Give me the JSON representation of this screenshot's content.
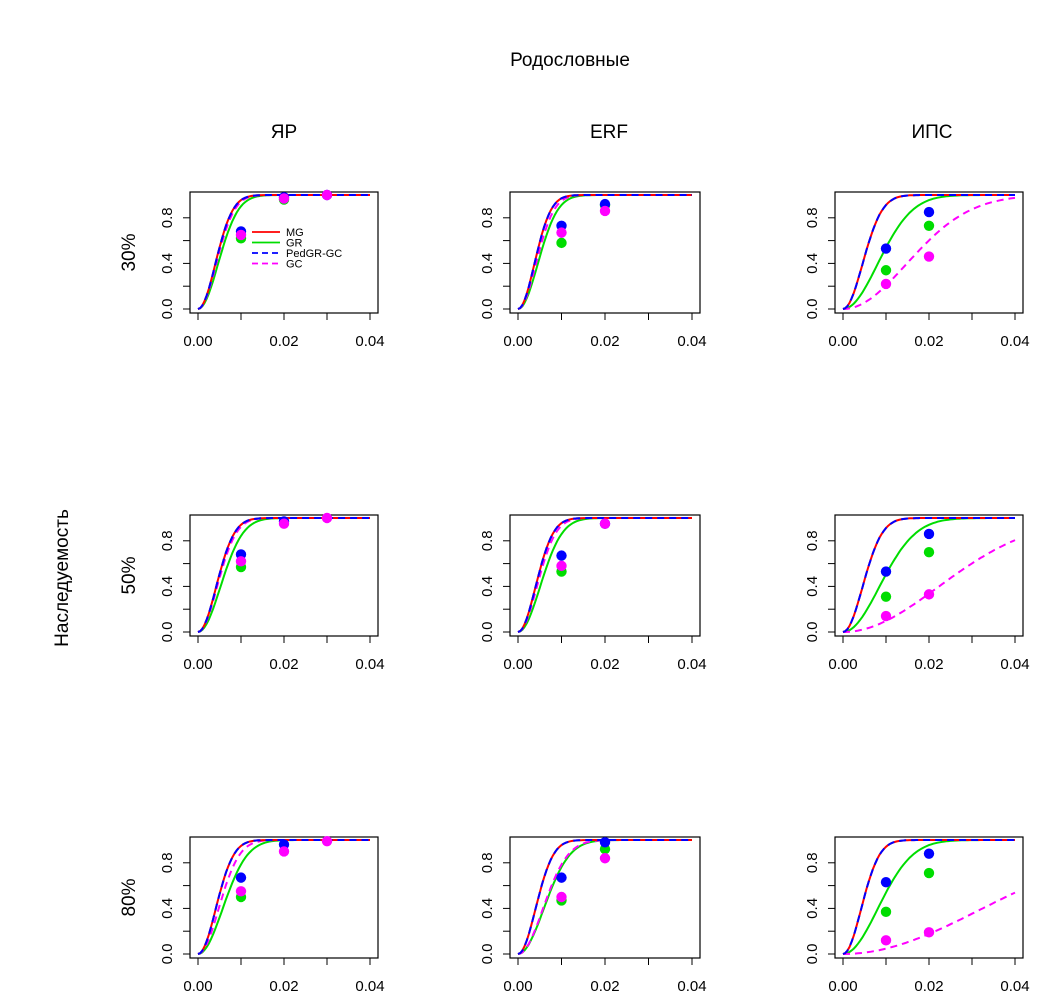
{
  "title": "Родословные",
  "row_label": "Наследуемость",
  "column_titles": [
    "ЯР",
    "ERF",
    "ИПС"
  ],
  "row_titles": [
    "30%",
    "50%",
    "80%"
  ],
  "x_ticks": [
    "0.00",
    "0.02",
    "0.04"
  ],
  "y_ticks": [
    "0.0",
    "0.4",
    "0.8"
  ],
  "legend": [
    {
      "label": "MG",
      "color": "#ff0000",
      "dash": "solid"
    },
    {
      "label": "GR",
      "color": "#00dd00",
      "dash": "solid"
    },
    {
      "label": "PedGR-GC",
      "color": "#0000ff",
      "dash": "dashed"
    },
    {
      "label": "GC",
      "color": "#ff00ff",
      "dash": "dashed"
    }
  ],
  "colors": {
    "MG": "#ff0000",
    "GR": "#00dd00",
    "PedGR-GC": "#0000ff",
    "GC": "#ff00ff"
  },
  "chart_data": [
    {
      "type": "line",
      "title": "ЯР",
      "row": "30%",
      "xlim": [
        0,
        0.04
      ],
      "ylim": [
        0,
        1
      ],
      "curves": {
        "MG": {
          "k": 4.4,
          "n": 2
        },
        "GR": {
          "k": 3.8,
          "n": 2
        },
        "PedGR-GC": {
          "k": 4.4,
          "n": 2
        },
        "GC": {
          "k": 4.2,
          "n": 2
        }
      },
      "points": [
        {
          "series": "GR",
          "x": 0.01,
          "y": 0.62
        },
        {
          "series": "PedGR-GC",
          "x": 0.01,
          "y": 0.68
        },
        {
          "series": "GC",
          "x": 0.01,
          "y": 0.65
        },
        {
          "series": "GR",
          "x": 0.02,
          "y": 0.96
        },
        {
          "series": "PedGR-GC",
          "x": 0.02,
          "y": 0.98
        },
        {
          "series": "GC",
          "x": 0.02,
          "y": 0.97
        },
        {
          "series": "PedGR-GC",
          "x": 0.03,
          "y": 1.0
        },
        {
          "series": "GC",
          "x": 0.03,
          "y": 1.0
        }
      ]
    },
    {
      "type": "line",
      "title": "ERF",
      "row": "30%",
      "xlim": [
        0,
        0.04
      ],
      "ylim": [
        0,
        1
      ],
      "curves": {
        "MG": {
          "k": 4.7,
          "n": 2
        },
        "GR": {
          "k": 3.9,
          "n": 2
        },
        "PedGR-GC": {
          "k": 4.7,
          "n": 2
        },
        "GC": {
          "k": 4.3,
          "n": 2
        }
      },
      "points": [
        {
          "series": "GR",
          "x": 0.01,
          "y": 0.58
        },
        {
          "series": "PedGR-GC",
          "x": 0.01,
          "y": 0.73
        },
        {
          "series": "GC",
          "x": 0.01,
          "y": 0.67
        },
        {
          "series": "GR",
          "x": 0.02,
          "y": 0.91
        },
        {
          "series": "PedGR-GC",
          "x": 0.02,
          "y": 0.92
        },
        {
          "series": "GC",
          "x": 0.02,
          "y": 0.86
        }
      ]
    },
    {
      "type": "line",
      "title": "ИПС",
      "row": "30%",
      "xlim": [
        0,
        0.04
      ],
      "ylim": [
        0,
        1
      ],
      "curves": {
        "MG": {
          "k": 3.9,
          "n": 2
        },
        "GR": {
          "k": 2.2,
          "n": 2
        },
        "PedGR-GC": {
          "k": 3.9,
          "n": 2
        },
        "GC": {
          "k": 1.2,
          "n": 2
        }
      },
      "points": [
        {
          "series": "GR",
          "x": 0.01,
          "y": 0.34
        },
        {
          "series": "PedGR-GC",
          "x": 0.01,
          "y": 0.53
        },
        {
          "series": "GC",
          "x": 0.01,
          "y": 0.22
        },
        {
          "series": "GR",
          "x": 0.02,
          "y": 0.73
        },
        {
          "series": "PedGR-GC",
          "x": 0.02,
          "y": 0.85
        },
        {
          "series": "GC",
          "x": 0.02,
          "y": 0.46
        }
      ]
    },
    {
      "type": "line",
      "title": "ЯР",
      "row": "50%",
      "xlim": [
        0,
        0.04
      ],
      "ylim": [
        0,
        1
      ],
      "curves": {
        "MG": {
          "k": 4.2,
          "n": 2
        },
        "GR": {
          "k": 3.4,
          "n": 2
        },
        "PedGR-GC": {
          "k": 4.2,
          "n": 2
        },
        "GC": {
          "k": 4.0,
          "n": 2
        }
      },
      "points": [
        {
          "series": "GR",
          "x": 0.01,
          "y": 0.57
        },
        {
          "series": "PedGR-GC",
          "x": 0.01,
          "y": 0.68
        },
        {
          "series": "GC",
          "x": 0.01,
          "y": 0.62
        },
        {
          "series": "PedGR-GC",
          "x": 0.02,
          "y": 0.97
        },
        {
          "series": "GC",
          "x": 0.02,
          "y": 0.95
        },
        {
          "series": "GC",
          "x": 0.03,
          "y": 1.0
        }
      ]
    },
    {
      "type": "line",
      "title": "ERF",
      "row": "50%",
      "xlim": [
        0,
        0.04
      ],
      "ylim": [
        0,
        1
      ],
      "curves": {
        "MG": {
          "k": 4.4,
          "n": 2
        },
        "GR": {
          "k": 3.5,
          "n": 2
        },
        "PedGR-GC": {
          "k": 4.4,
          "n": 2
        },
        "GC": {
          "k": 4.1,
          "n": 2
        }
      },
      "points": [
        {
          "series": "GR",
          "x": 0.01,
          "y": 0.53
        },
        {
          "series": "PedGR-GC",
          "x": 0.01,
          "y": 0.67
        },
        {
          "series": "GC",
          "x": 0.01,
          "y": 0.58
        },
        {
          "series": "PedGR-GC",
          "x": 0.02,
          "y": 0.95
        },
        {
          "series": "GC",
          "x": 0.02,
          "y": 0.95
        }
      ]
    },
    {
      "type": "line",
      "title": "ИПС",
      "row": "50%",
      "xlim": [
        0,
        0.04
      ],
      "ylim": [
        0,
        1
      ],
      "curves": {
        "MG": {
          "k": 3.9,
          "n": 2
        },
        "GR": {
          "k": 2.1,
          "n": 2
        },
        "PedGR-GC": {
          "k": 3.9,
          "n": 2
        },
        "GC": {
          "k": 0.8,
          "n": 2
        }
      },
      "points": [
        {
          "series": "GR",
          "x": 0.01,
          "y": 0.31
        },
        {
          "series": "PedGR-GC",
          "x": 0.01,
          "y": 0.53
        },
        {
          "series": "GC",
          "x": 0.01,
          "y": 0.14
        },
        {
          "series": "GR",
          "x": 0.02,
          "y": 0.7
        },
        {
          "series": "PedGR-GC",
          "x": 0.02,
          "y": 0.86
        },
        {
          "series": "GC",
          "x": 0.02,
          "y": 0.33
        }
      ]
    },
    {
      "type": "line",
      "title": "ЯР",
      "row": "80%",
      "xlim": [
        0,
        0.04
      ],
      "ylim": [
        0,
        1
      ],
      "curves": {
        "MG": {
          "k": 4.3,
          "n": 2
        },
        "GR": {
          "k": 3.1,
          "n": 2
        },
        "PedGR-GC": {
          "k": 4.3,
          "n": 2
        },
        "GC": {
          "k": 3.7,
          "n": 2
        }
      },
      "points": [
        {
          "series": "GR",
          "x": 0.01,
          "y": 0.5
        },
        {
          "series": "PedGR-GC",
          "x": 0.01,
          "y": 0.67
        },
        {
          "series": "GC",
          "x": 0.01,
          "y": 0.55
        },
        {
          "series": "PedGR-GC",
          "x": 0.02,
          "y": 0.96
        },
        {
          "series": "GC",
          "x": 0.02,
          "y": 0.9
        },
        {
          "series": "GC",
          "x": 0.03,
          "y": 0.99
        }
      ]
    },
    {
      "type": "line",
      "title": "ERF",
      "row": "80%",
      "xlim": [
        0,
        0.04
      ],
      "ylim": [
        0,
        1
      ],
      "curves": {
        "MG": {
          "k": 4.4,
          "n": 2
        },
        "GR": {
          "k": 3.0,
          "n": 2
        },
        "PedGR-GC": {
          "k": 4.4,
          "n": 2
        },
        "GC": {
          "k": 3.1,
          "n": 2
        }
      },
      "points": [
        {
          "series": "GR",
          "x": 0.01,
          "y": 0.47
        },
        {
          "series": "PedGR-GC",
          "x": 0.01,
          "y": 0.67
        },
        {
          "series": "GC",
          "x": 0.01,
          "y": 0.5
        },
        {
          "series": "GR",
          "x": 0.02,
          "y": 0.92
        },
        {
          "series": "PedGR-GC",
          "x": 0.02,
          "y": 0.98
        },
        {
          "series": "GC",
          "x": 0.02,
          "y": 0.84
        }
      ]
    },
    {
      "type": "line",
      "title": "ИПС",
      "row": "80%",
      "xlim": [
        0,
        0.04
      ],
      "ylim": [
        0,
        1
      ],
      "curves": {
        "MG": {
          "k": 4.2,
          "n": 2
        },
        "GR": {
          "k": 2.2,
          "n": 2
        },
        "PedGR-GC": {
          "k": 4.2,
          "n": 2
        },
        "GC": {
          "k": 0.55,
          "n": 2
        }
      },
      "points": [
        {
          "series": "GR",
          "x": 0.01,
          "y": 0.37
        },
        {
          "series": "PedGR-GC",
          "x": 0.01,
          "y": 0.63
        },
        {
          "series": "GC",
          "x": 0.01,
          "y": 0.12
        },
        {
          "series": "GR",
          "x": 0.02,
          "y": 0.71
        },
        {
          "series": "PedGR-GC",
          "x": 0.02,
          "y": 0.88
        },
        {
          "series": "GC",
          "x": 0.02,
          "y": 0.19
        }
      ]
    }
  ]
}
